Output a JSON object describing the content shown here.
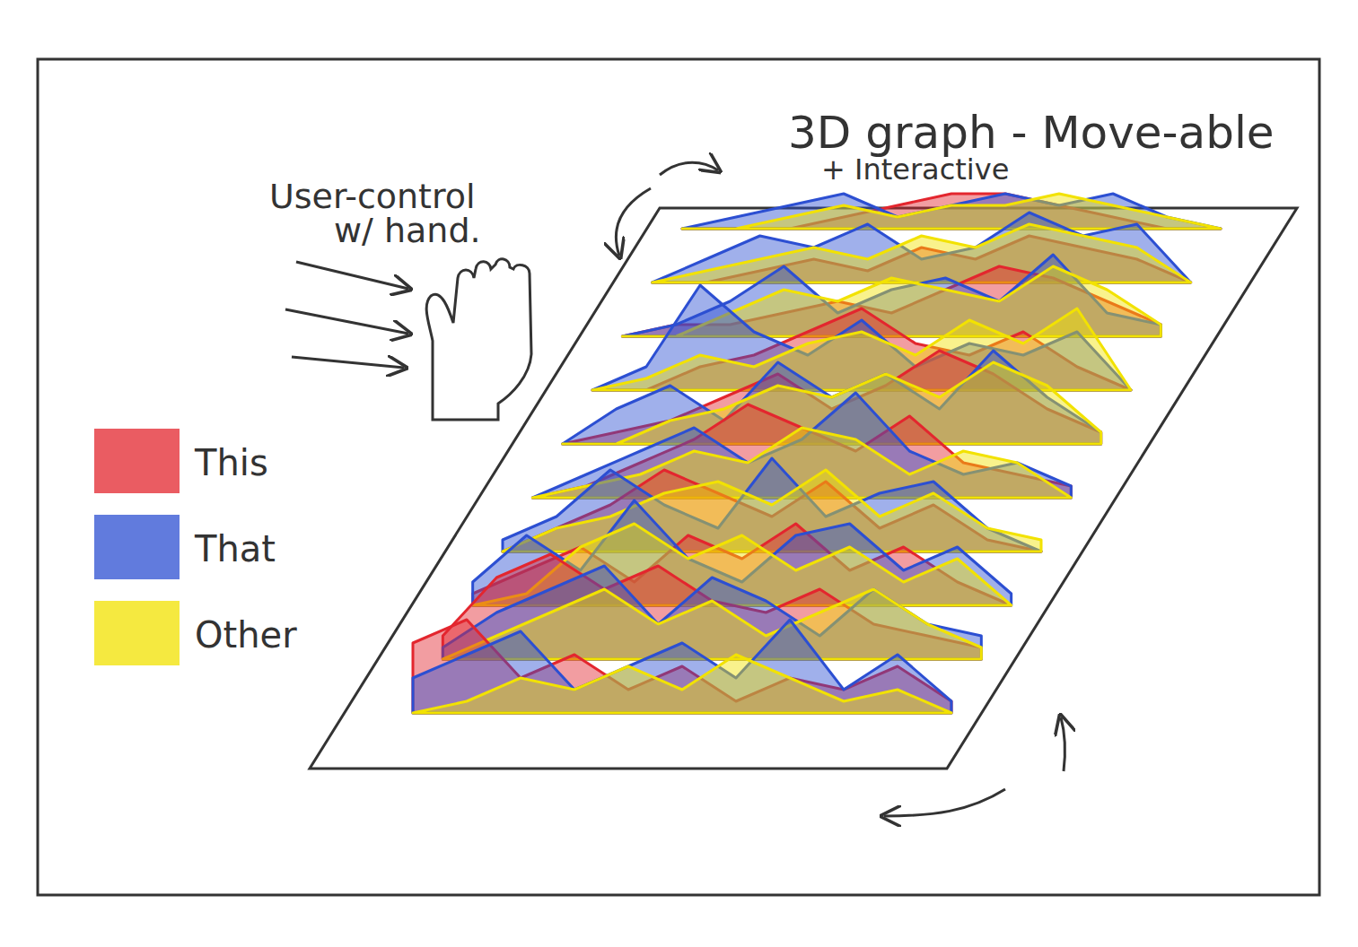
{
  "chart_data": {
    "type": "area",
    "title": "3D graph - Move-able",
    "subtitle": "+ Interactive",
    "annotations": [
      "User-control",
      "w/ hand."
    ],
    "categories": [
      null,
      null,
      null,
      null,
      null,
      null,
      null,
      null,
      null,
      null
    ],
    "x": [
      0,
      1,
      2,
      3,
      4,
      5,
      6,
      7,
      8,
      9,
      10
    ],
    "xlim": [
      0,
      10
    ],
    "ylim": [
      0,
      10
    ],
    "tick_labels": false,
    "legend": "left",
    "series": [
      {
        "name": "This",
        "color": "#e3262e",
        "values": [
          [
            6,
            8,
            3,
            5,
            2,
            4,
            1,
            3,
            2,
            4,
            1
          ],
          [
            2,
            7,
            9,
            6,
            8,
            5,
            4,
            6,
            3,
            2,
            1
          ],
          [
            1,
            3,
            5,
            2,
            6,
            4,
            7,
            3,
            5,
            2,
            0
          ],
          [
            0,
            2,
            4,
            7,
            5,
            3,
            6,
            2,
            4,
            1,
            0
          ],
          [
            0,
            1,
            3,
            5,
            8,
            6,
            4,
            7,
            3,
            2,
            1
          ],
          [
            0,
            1,
            2,
            4,
            6,
            3,
            5,
            8,
            6,
            3,
            1
          ],
          [
            0,
            0,
            2,
            3,
            5,
            7,
            4,
            3,
            5,
            2,
            0
          ],
          [
            0,
            1,
            1,
            2,
            3,
            2,
            4,
            6,
            5,
            3,
            1
          ],
          [
            0,
            0,
            1,
            2,
            1,
            3,
            2,
            4,
            3,
            2,
            0
          ],
          [
            0,
            0,
            0,
            1,
            2,
            3,
            3,
            2,
            1,
            0,
            0
          ]
        ]
      },
      {
        "name": "That",
        "color": "#2c4fd2",
        "values": [
          [
            3,
            5,
            7,
            2,
            4,
            6,
            3,
            8,
            2,
            5,
            1
          ],
          [
            1,
            4,
            6,
            8,
            3,
            7,
            5,
            2,
            6,
            3,
            2
          ],
          [
            2,
            6,
            3,
            9,
            4,
            2,
            6,
            7,
            3,
            5,
            1
          ],
          [
            1,
            3,
            7,
            4,
            2,
            8,
            3,
            5,
            6,
            2,
            0
          ],
          [
            0,
            2,
            4,
            6,
            3,
            5,
            9,
            4,
            2,
            3,
            1
          ],
          [
            0,
            3,
            5,
            2,
            7,
            4,
            6,
            3,
            8,
            4,
            1
          ],
          [
            0,
            2,
            9,
            5,
            3,
            6,
            2,
            4,
            3,
            5,
            0
          ],
          [
            0,
            1,
            3,
            6,
            2,
            4,
            5,
            3,
            7,
            2,
            1
          ],
          [
            0,
            2,
            4,
            3,
            5,
            2,
            3,
            6,
            4,
            5,
            0
          ],
          [
            0,
            1,
            2,
            3,
            1,
            2,
            3,
            2,
            3,
            1,
            0
          ]
        ]
      },
      {
        "name": "Other",
        "color": "#f2e200",
        "values": [
          [
            0,
            1,
            3,
            2,
            4,
            2,
            5,
            3,
            1,
            2,
            0
          ],
          [
            0,
            2,
            4,
            6,
            3,
            5,
            2,
            4,
            6,
            3,
            1
          ],
          [
            0,
            1,
            5,
            7,
            4,
            6,
            3,
            5,
            2,
            4,
            0
          ],
          [
            0,
            2,
            3,
            5,
            6,
            4,
            7,
            3,
            5,
            2,
            1
          ],
          [
            0,
            1,
            2,
            4,
            3,
            6,
            5,
            2,
            4,
            3,
            0
          ],
          [
            0,
            0,
            2,
            3,
            5,
            4,
            6,
            4,
            7,
            5,
            1
          ],
          [
            0,
            1,
            3,
            2,
            4,
            5,
            3,
            6,
            4,
            7,
            0
          ],
          [
            0,
            0,
            2,
            4,
            3,
            5,
            4,
            3,
            6,
            4,
            1
          ],
          [
            0,
            1,
            2,
            3,
            2,
            4,
            3,
            5,
            4,
            3,
            0
          ],
          [
            0,
            0,
            1,
            2,
            1,
            2,
            2,
            3,
            2,
            1,
            0
          ]
        ]
      }
    ]
  }
}
